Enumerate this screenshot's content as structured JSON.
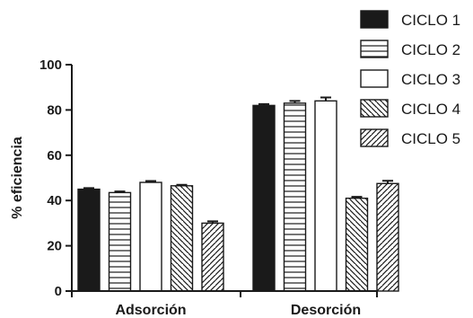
{
  "chart_data": {
    "type": "bar",
    "title": "",
    "xlabel": "",
    "ylabel": "% eficiencia",
    "ylim": [
      0,
      100
    ],
    "yticks": [
      0,
      20,
      40,
      60,
      80,
      100
    ],
    "categories": [
      "Adsorción",
      "Desorción"
    ],
    "legend_position": "top-right",
    "series": [
      {
        "name": "CICLO 1",
        "pattern": "solid",
        "values": [
          45,
          82
        ],
        "errors": [
          0.5,
          0.6
        ]
      },
      {
        "name": "CICLO 2",
        "pattern": "horizontal",
        "values": [
          43.5,
          83
        ],
        "errors": [
          0.5,
          1.0
        ]
      },
      {
        "name": "CICLO 3",
        "pattern": "empty",
        "values": [
          48,
          84
        ],
        "errors": [
          0.6,
          1.5
        ]
      },
      {
        "name": "CICLO 4",
        "pattern": "diagonal-down",
        "values": [
          46.5,
          41
        ],
        "errors": [
          0.4,
          0.6
        ]
      },
      {
        "name": "CICLO 5",
        "pattern": "diagonal-up",
        "values": [
          30,
          47.5
        ],
        "errors": [
          0.8,
          1.2
        ]
      }
    ],
    "colors": {
      "ink": "#1a1a1a",
      "solid_fill": "#1a1a1a",
      "background": "#ffffff"
    }
  }
}
